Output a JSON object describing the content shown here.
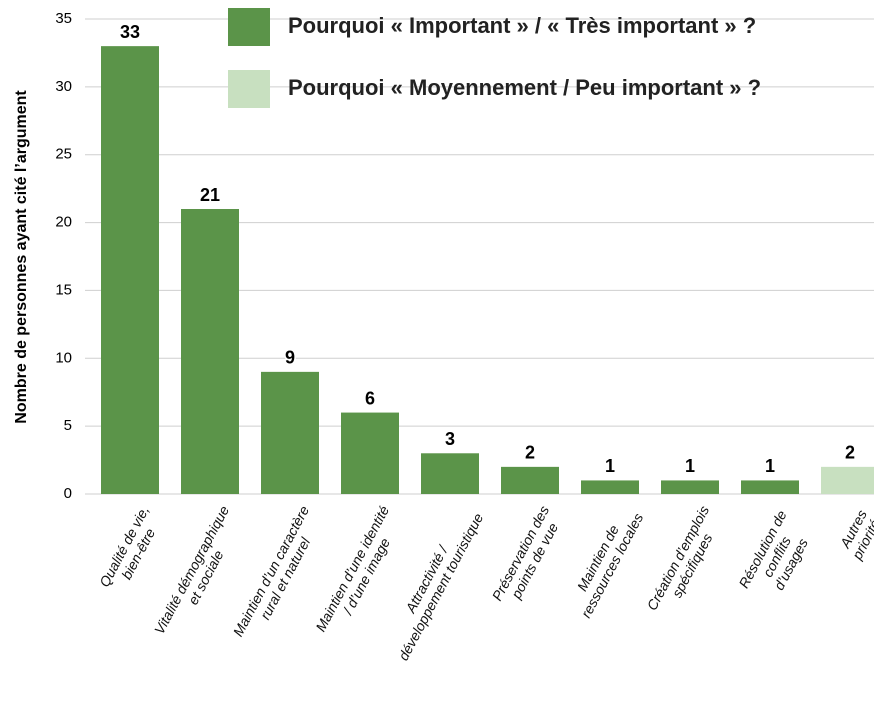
{
  "chart_data": {
    "type": "bar",
    "y_label": "Nombre de personnes ayant cité l’argument",
    "categories": [
      "Qualité de vie,\nbien-être",
      "Vitalité démographique\net sociale",
      "Maintien d’un caractère\nrural et naturel",
      "Maintien d’une identité\n/ d’une image",
      "Attractivité /\ndéveloppement touristique",
      "Préservation des\npoints de vue",
      "Maintien de\nressources locales",
      "Création d’emplois\nspécifiques",
      "Résolution de\nconflits d’usages",
      "Autres priorités"
    ],
    "series": [
      {
        "name": "Pourquoi « Important » / « Très important » ?",
        "color": "#5b9449",
        "values": [
          33,
          21,
          9,
          6,
          3,
          2,
          1,
          1,
          1,
          null
        ]
      },
      {
        "name": "Pourquoi « Moyennement / Peu important » ?",
        "color": "#c8e0c0",
        "values": [
          null,
          null,
          null,
          null,
          null,
          null,
          null,
          null,
          null,
          2
        ]
      }
    ],
    "ylim": [
      0,
      35
    ],
    "yticks": [
      0,
      5,
      10,
      15,
      20,
      25,
      30,
      35
    ],
    "grid": true
  }
}
